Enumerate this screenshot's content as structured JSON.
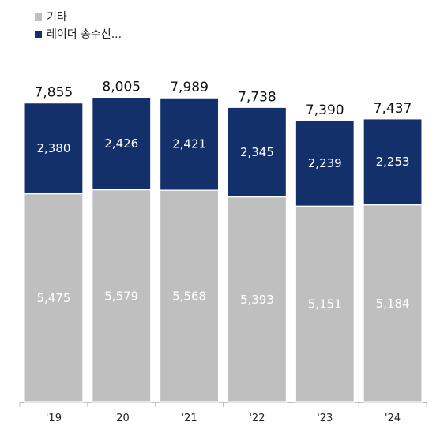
{
  "chart_data": {
    "type": "bar",
    "stacked": true,
    "categories": [
      "'19",
      "'20",
      "'21",
      "'22",
      "'23",
      "'24"
    ],
    "series": [
      {
        "name": "기타",
        "values": [
          5475,
          5579,
          5568,
          5393,
          5151,
          5184
        ],
        "color": "#bfbfbf"
      },
      {
        "name": "레이더 송수신...",
        "values": [
          2380,
          2426,
          2421,
          2345,
          2239,
          2253
        ],
        "color": "#14306b"
      }
    ],
    "totals": [
      7855,
      8005,
      7989,
      7738,
      7390,
      7437
    ],
    "ylim": [
      0,
      8800
    ],
    "grid": false,
    "legend_position": "top-left"
  }
}
